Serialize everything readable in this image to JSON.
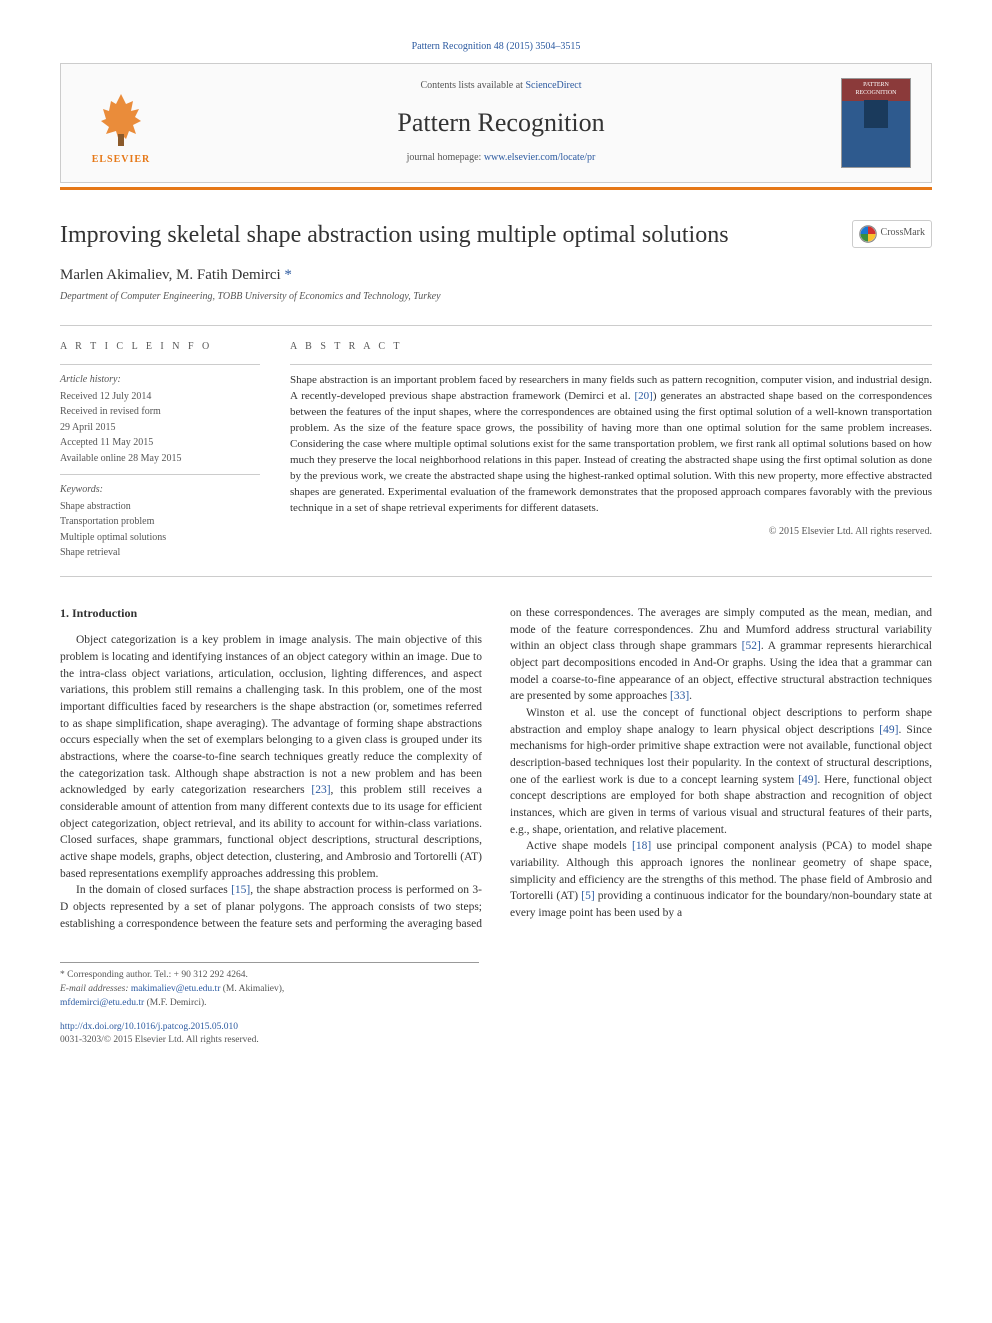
{
  "journal_ref": {
    "prefix": "Pattern Recognition 48 (2015) 3504–3515",
    "link_text": "Pattern Recognition 48 (2015) 3504–3515"
  },
  "header": {
    "contents_prefix": "Contents lists available at ",
    "contents_link": "ScienceDirect",
    "journal_name": "Pattern Recognition",
    "homepage_prefix": "journal homepage: ",
    "homepage_link": "www.elsevier.com/locate/pr",
    "elsevier_name": "ELSEVIER",
    "cover_label": "PATTERN RECOGNITION"
  },
  "colors": {
    "orange": "#e67817",
    "link_blue": "#2c5aa0",
    "text_gray": "#555555",
    "rule_gray": "#cccccc"
  },
  "article": {
    "title": "Improving skeletal shape abstraction using multiple optimal solutions",
    "crossmark": "CrossMark",
    "authors": "Marlen Akimaliev, M. Fatih Demirci ",
    "author_mark": "*",
    "affiliation": "Department of Computer Engineering, TOBB University of Economics and Technology, Turkey"
  },
  "info": {
    "heading": "A R T I C L E  I N F O",
    "history_label": "Article history:",
    "history": [
      "Received 12 July 2014",
      "Received in revised form",
      "29 April 2015",
      "Accepted 11 May 2015",
      "Available online 28 May 2015"
    ],
    "keywords_label": "Keywords:",
    "keywords": [
      "Shape abstraction",
      "Transportation problem",
      "Multiple optimal solutions",
      "Shape retrieval"
    ]
  },
  "abstract": {
    "heading": "A B S T R A C T",
    "text": "Shape abstraction is an important problem faced by researchers in many fields such as pattern recognition, computer vision, and industrial design. A recently-developed previous shape abstraction framework (Demirci et al. [20]) generates an abstracted shape based on the correspondences between the features of the input shapes, where the correspondences are obtained using the first optimal solution of a well-known transportation problem. As the size of the feature space grows, the possibility of having more than one optimal solution for the same problem increases. Considering the case where multiple optimal solutions exist for the same transportation problem, we first rank all optimal solutions based on how much they preserve the local neighborhood relations in this paper. Instead of creating the abstracted shape using the first optimal solution as done by the previous work, we create the abstracted shape using the highest-ranked optimal solution. With this new property, more effective abstracted shapes are generated. Experimental evaluation of the framework demonstrates that the proposed approach compares favorably with the previous technique in a set of shape retrieval experiments for different datasets.",
    "copyright": "© 2015 Elsevier Ltd. All rights reserved."
  },
  "body": {
    "section_heading": "1.  Introduction",
    "p1": "Object categorization is a key problem in image analysis. The main objective of this problem is locating and identifying instances of an object category within an image. Due to the intra-class object variations, articulation, occlusion, lighting differences, and aspect variations, this problem still remains a challenging task. In this problem, one of the most important difficulties faced by researchers is the shape abstraction (or, sometimes referred to as shape simplification, shape averaging). The advantage of forming shape abstractions occurs especially when the set of exemplars belonging to a given class is grouped under its abstractions, where the coarse-to-fine search techniques greatly reduce the complexity of the categorization task. Although shape abstraction is not a new problem and has been acknowledged by early categorization researchers [23], this problem still receives a considerable amount of attention from many different contexts due to its usage for efficient object categorization, object retrieval, and its ability to account for within-class variations. Closed surfaces, shape grammars, functional object descriptions, structural descriptions, active shape models, graphs, object detection, clustering, and Ambrosio and Tortorelli (AT) based representations exemplify approaches addressing this problem.",
    "p2": "In the domain of closed surfaces [15], the shape abstraction process is performed on 3-D objects represented by a set of planar polygons. The approach consists of two steps; establishing a correspondence between the feature sets and performing the averaging based on these correspondences. The averages are simply computed as the mean, median, and mode of the feature correspondences. Zhu and Mumford address structural variability within an object class through shape grammars [52]. A grammar represents hierarchical object part decompositions encoded in And-Or graphs. Using the idea that a grammar can model a coarse-to-fine appearance of an object, effective structural abstraction techniques are presented by some approaches [33].",
    "p3": "Winston et al. use the concept of functional object descriptions to perform shape abstraction and employ shape analogy to learn physical object descriptions [49]. Since mechanisms for high-order primitive shape extraction were not available, functional object description-based techniques lost their popularity. In the context of structural descriptions, one of the earliest work is due to a concept learning system [49]. Here, functional object concept descriptions are employed for both shape abstraction and recognition of object instances, which are given in terms of various visual and structural features of their parts, e.g., shape, orientation, and relative placement.",
    "p4": "Active shape models [18] use principal component analysis (PCA) to model shape variability. Although this approach ignores the nonlinear geometry of shape space, simplicity and efficiency are the strengths of this method. The phase field of Ambrosio and Tortorelli (AT) [5] providing a continuous indicator for the boundary/non-boundary state at every image point has been used by a",
    "ref23": "[23]",
    "ref15": "[15]",
    "ref52": "[52]",
    "ref33": "[33]",
    "ref49a": "[49]",
    "ref49b": "[49]",
    "ref18": "[18]",
    "ref5": "[5]",
    "ref20": "[20]"
  },
  "footnotes": {
    "corresponding": "* Corresponding author. Tel.: + 90 312 292 4264.",
    "email_label": "E-mail addresses: ",
    "email1": "makimaliev@etu.edu.tr",
    "email1_name": " (M. Akimaliev),",
    "email2": "mfdemirci@etu.edu.tr",
    "email2_name": " (M.F. Demirci)."
  },
  "doi": {
    "link": "http://dx.doi.org/10.1016/j.patcog.2015.05.010",
    "issn_copy": "0031-3203/© 2015 Elsevier Ltd. All rights reserved."
  }
}
